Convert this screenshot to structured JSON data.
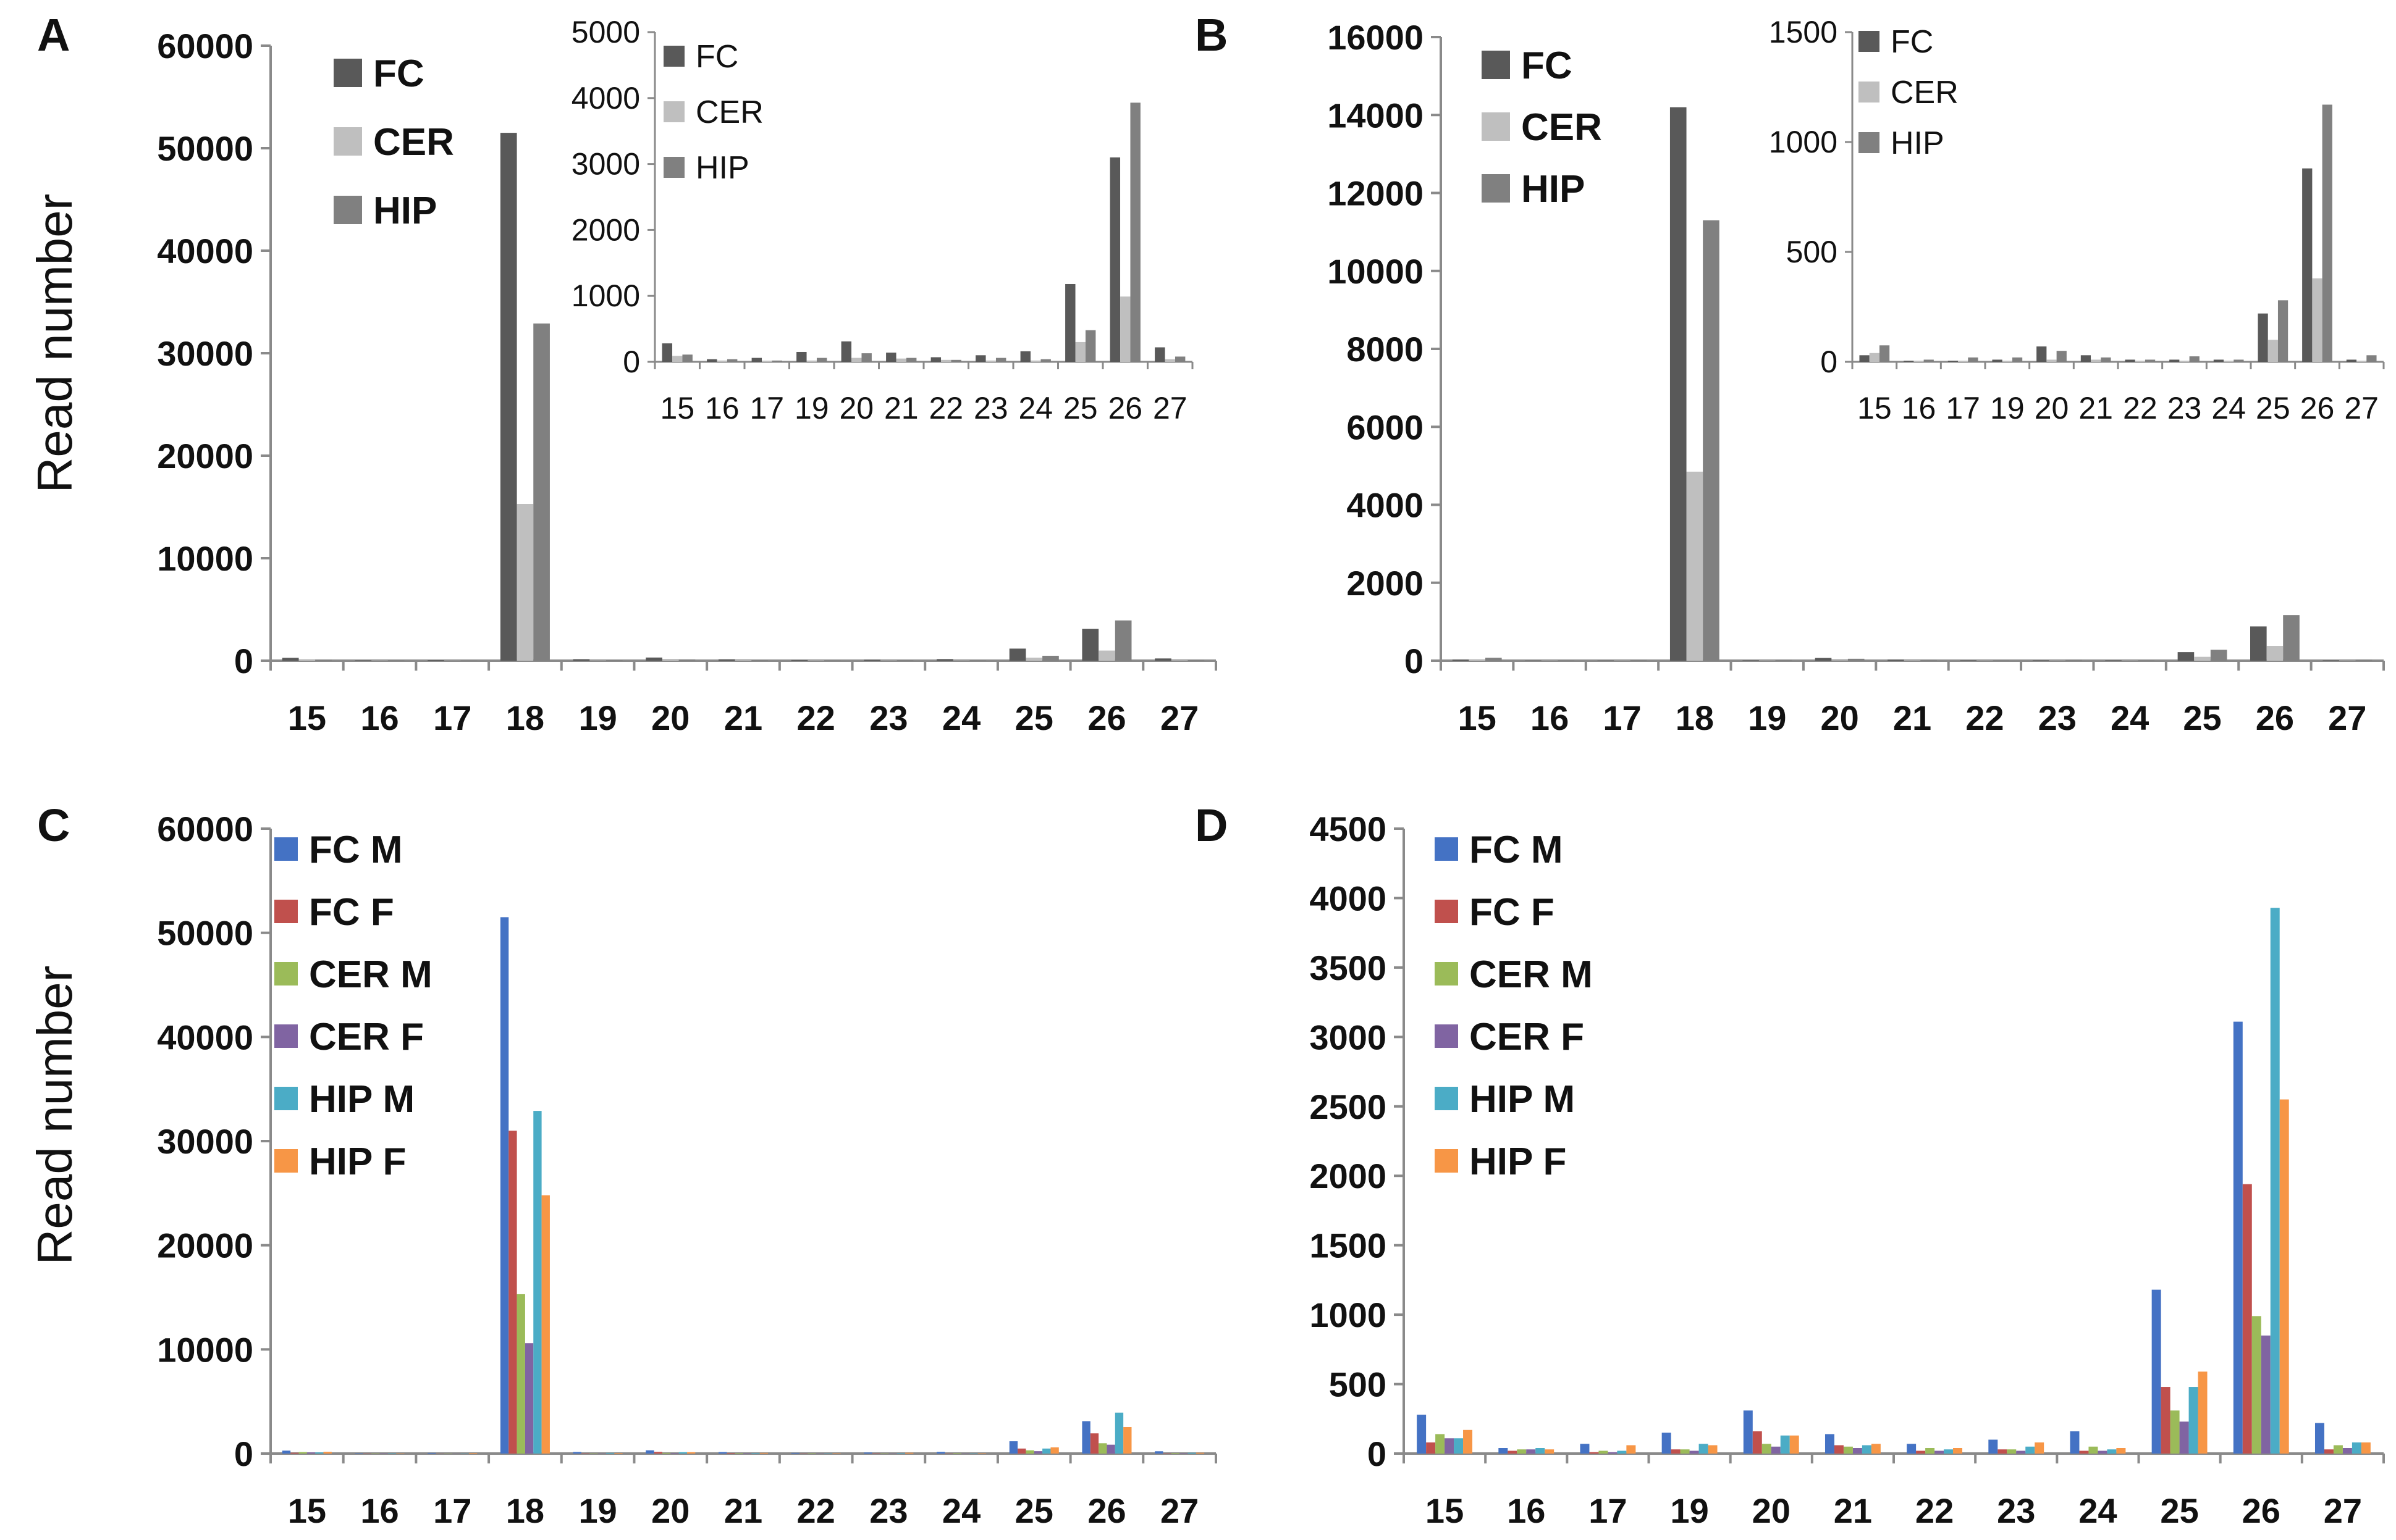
{
  "chart_data": [
    {
      "panel": "A",
      "type": "bar",
      "ylabel": "Read number",
      "ylim": [
        0,
        60000
      ],
      "yticks": [
        0,
        10000,
        20000,
        30000,
        40000,
        50000,
        60000
      ],
      "categories": [
        "15",
        "16",
        "17",
        "18",
        "19",
        "20",
        "21",
        "22",
        "23",
        "24",
        "25",
        "26",
        "27"
      ],
      "legend": "top-left",
      "series": [
        {
          "name": "FC",
          "color": "#595959",
          "values": [
            280,
            40,
            60,
            51500,
            150,
            310,
            140,
            70,
            100,
            160,
            1180,
            3100,
            220
          ]
        },
        {
          "name": "CER",
          "color": "#bfbfbf",
          "values": [
            90,
            20,
            10,
            15300,
            20,
            60,
            50,
            30,
            20,
            20,
            300,
            990,
            40
          ]
        },
        {
          "name": "HIP",
          "color": "#808080",
          "values": [
            110,
            40,
            20,
            32900,
            60,
            130,
            60,
            30,
            60,
            40,
            480,
            3930,
            80
          ]
        }
      ],
      "inset": {
        "ylim": [
          0,
          5000
        ],
        "yticks": [
          0,
          1000,
          2000,
          3000,
          4000,
          5000
        ],
        "categories": [
          "15",
          "16",
          "17",
          "19",
          "20",
          "21",
          "22",
          "23",
          "24",
          "25",
          "26",
          "27"
        ],
        "series": [
          {
            "name": "FC",
            "color": "#595959",
            "values": [
              280,
              40,
              60,
              150,
              310,
              140,
              70,
              100,
              160,
              1180,
              3100,
              220
            ]
          },
          {
            "name": "CER",
            "color": "#bfbfbf",
            "values": [
              90,
              20,
              10,
              20,
              60,
              50,
              30,
              20,
              20,
              300,
              990,
              40
            ]
          },
          {
            "name": "HIP",
            "color": "#808080",
            "values": [
              110,
              40,
              20,
              60,
              130,
              60,
              30,
              60,
              40,
              480,
              3930,
              80
            ]
          }
        ]
      }
    },
    {
      "panel": "B",
      "type": "bar",
      "ylabel": "",
      "ylim": [
        0,
        16000
      ],
      "yticks": [
        0,
        2000,
        4000,
        6000,
        8000,
        10000,
        12000,
        14000,
        16000
      ],
      "categories": [
        "15",
        "16",
        "17",
        "18",
        "19",
        "20",
        "21",
        "22",
        "23",
        "24",
        "25",
        "26",
        "27"
      ],
      "legend": "top-left",
      "series": [
        {
          "name": "FC",
          "color": "#595959",
          "values": [
            30,
            5,
            5,
            14200,
            10,
            70,
            30,
            10,
            10,
            10,
            220,
            880,
            10
          ]
        },
        {
          "name": "CER",
          "color": "#bfbfbf",
          "values": [
            40,
            5,
            5,
            4850,
            5,
            10,
            10,
            5,
            5,
            5,
            100,
            380,
            5
          ]
        },
        {
          "name": "HIP",
          "color": "#808080",
          "values": [
            75,
            10,
            20,
            11300,
            20,
            50,
            20,
            10,
            25,
            10,
            280,
            1170,
            30
          ]
        }
      ],
      "inset": {
        "ylim": [
          0,
          1500
        ],
        "yticks": [
          0,
          500,
          1000,
          1500
        ],
        "categories": [
          "15",
          "16",
          "17",
          "19",
          "20",
          "21",
          "22",
          "23",
          "24",
          "25",
          "26",
          "27"
        ],
        "series": [
          {
            "name": "FC",
            "color": "#595959",
            "values": [
              30,
              5,
              5,
              10,
              70,
              30,
              10,
              10,
              10,
              220,
              880,
              10
            ]
          },
          {
            "name": "CER",
            "color": "#bfbfbf",
            "values": [
              40,
              5,
              5,
              5,
              10,
              10,
              5,
              5,
              5,
              100,
              380,
              5
            ]
          },
          {
            "name": "HIP",
            "color": "#808080",
            "values": [
              75,
              10,
              20,
              20,
              50,
              20,
              10,
              25,
              10,
              280,
              1170,
              30
            ]
          }
        ]
      }
    },
    {
      "panel": "C",
      "type": "bar",
      "ylabel": "Read number",
      "ylim": [
        0,
        60000
      ],
      "yticks": [
        0,
        10000,
        20000,
        30000,
        40000,
        50000,
        60000
      ],
      "categories": [
        "15",
        "16",
        "17",
        "18",
        "19",
        "20",
        "21",
        "22",
        "23",
        "24",
        "25",
        "26",
        "27"
      ],
      "legend": "top-left",
      "series": [
        {
          "name": "FC M",
          "color": "#4472c4",
          "values": [
            280,
            40,
            70,
            51500,
            150,
            310,
            140,
            70,
            100,
            160,
            1180,
            3110,
            220
          ]
        },
        {
          "name": "FC F",
          "color": "#c0504d",
          "values": [
            80,
            20,
            10,
            31000,
            30,
            160,
            60,
            20,
            30,
            20,
            480,
            1940,
            30
          ]
        },
        {
          "name": "CER M",
          "color": "#9bbb59",
          "values": [
            140,
            30,
            20,
            15300,
            30,
            70,
            50,
            40,
            30,
            50,
            310,
            990,
            60
          ]
        },
        {
          "name": "CER F",
          "color": "#8064a2",
          "values": [
            110,
            30,
            10,
            10600,
            20,
            50,
            40,
            20,
            20,
            20,
            230,
            850,
            40
          ]
        },
        {
          "name": "HIP M",
          "color": "#4bacc6",
          "values": [
            110,
            40,
            20,
            32900,
            70,
            130,
            60,
            30,
            50,
            30,
            480,
            3930,
            80
          ]
        },
        {
          "name": "HIP F",
          "color": "#f79646",
          "values": [
            170,
            30,
            60,
            24800,
            60,
            130,
            70,
            40,
            80,
            40,
            590,
            2550,
            80
          ]
        }
      ]
    },
    {
      "panel": "D",
      "type": "bar",
      "ylabel": "",
      "ylim": [
        0,
        4500
      ],
      "yticks": [
        0,
        500,
        1000,
        1500,
        2000,
        2500,
        3000,
        3500,
        4000,
        4500
      ],
      "categories": [
        "15",
        "16",
        "17",
        "19",
        "20",
        "21",
        "22",
        "23",
        "24",
        "25",
        "26",
        "27"
      ],
      "legend": "top-left",
      "series": [
        {
          "name": "FC M",
          "color": "#4472c4",
          "values": [
            280,
            40,
            70,
            150,
            310,
            140,
            70,
            100,
            160,
            1180,
            3110,
            220
          ]
        },
        {
          "name": "FC F",
          "color": "#c0504d",
          "values": [
            80,
            20,
            10,
            30,
            160,
            60,
            20,
            30,
            20,
            480,
            1940,
            30
          ]
        },
        {
          "name": "CER M",
          "color": "#9bbb59",
          "values": [
            140,
            30,
            20,
            30,
            70,
            50,
            40,
            30,
            50,
            310,
            990,
            60
          ]
        },
        {
          "name": "CER F",
          "color": "#8064a2",
          "values": [
            110,
            30,
            10,
            20,
            50,
            40,
            20,
            20,
            20,
            230,
            850,
            40
          ]
        },
        {
          "name": "HIP M",
          "color": "#4bacc6",
          "values": [
            110,
            40,
            20,
            70,
            130,
            60,
            30,
            50,
            30,
            480,
            3930,
            80
          ]
        },
        {
          "name": "HIP F",
          "color": "#f79646",
          "values": [
            170,
            30,
            60,
            60,
            130,
            70,
            40,
            80,
            40,
            590,
            2550,
            80
          ]
        }
      ]
    }
  ]
}
